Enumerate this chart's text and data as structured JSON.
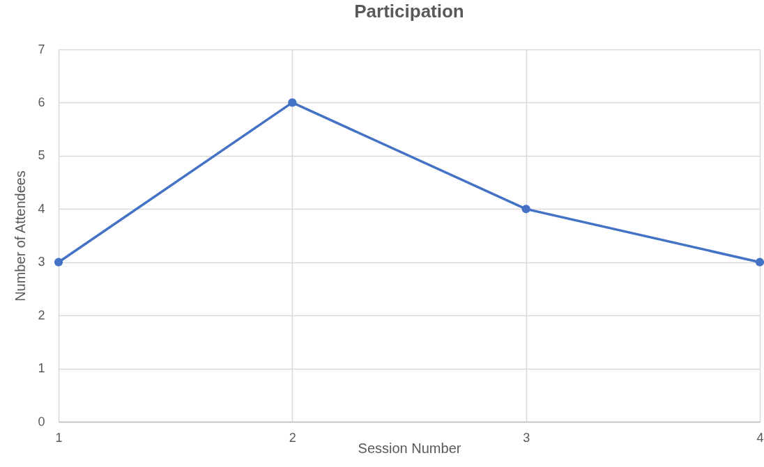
{
  "chart_data": {
    "type": "line",
    "title": "Participation",
    "xlabel": "Session Number",
    "ylabel": "Number of Attendees",
    "x": [
      1,
      2,
      3,
      4
    ],
    "series": [
      {
        "color": "#4472c4",
        "values": [
          3,
          6,
          4,
          3
        ]
      }
    ],
    "xlim": [
      1,
      4
    ],
    "xticks": [
      1,
      2,
      3,
      4
    ],
    "ylim": [
      0,
      7
    ],
    "yticks": [
      0,
      1,
      2,
      3,
      4,
      5,
      6,
      7
    ],
    "grid": true,
    "marker": "circle",
    "line_style": "solid"
  }
}
